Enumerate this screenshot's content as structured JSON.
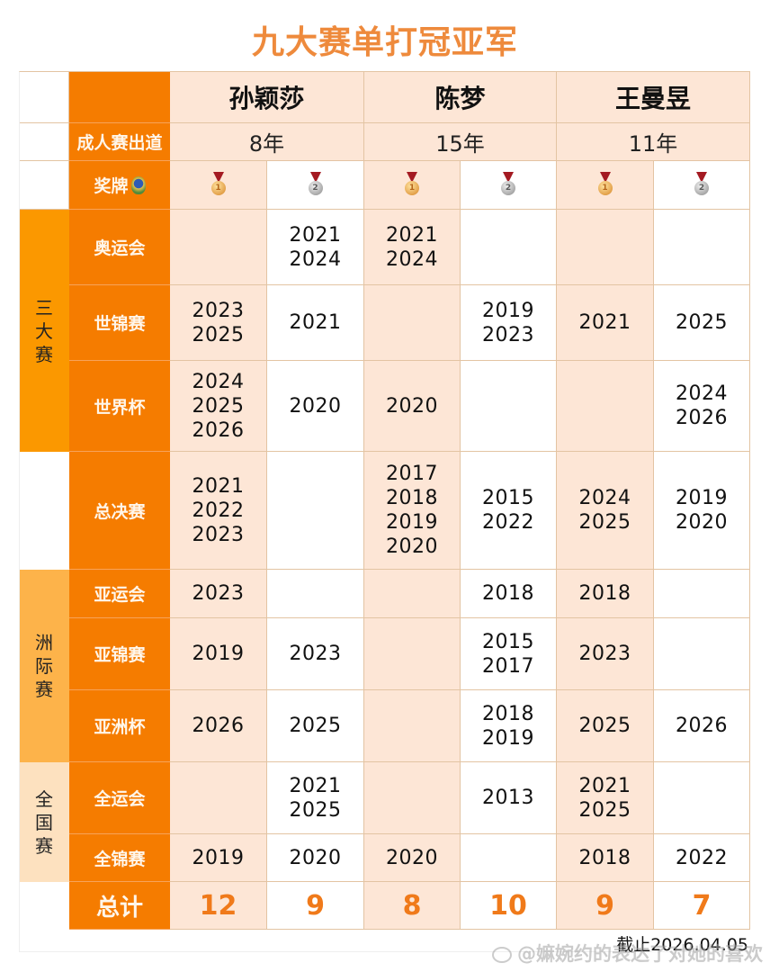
{
  "title": "九大赛单打冠亚军",
  "header": {
    "debut_label": "成人赛出道",
    "medal_label": "奖牌",
    "emblem_icon": "team-emblem-icon",
    "players": [
      {
        "name": "孙颖莎",
        "debut": "8年"
      },
      {
        "name": "陈梦",
        "debut": "15年"
      },
      {
        "name": "王曼昱",
        "debut": "11年"
      }
    ],
    "medals": [
      {
        "type": "gold",
        "number": "1",
        "icon": "gold-medal-icon"
      },
      {
        "type": "silver",
        "number": "2",
        "icon": "silver-medal-icon"
      },
      {
        "type": "gold",
        "number": "1",
        "icon": "gold-medal-icon"
      },
      {
        "type": "silver",
        "number": "2",
        "icon": "silver-medal-icon"
      },
      {
        "type": "gold",
        "number": "1",
        "icon": "gold-medal-icon"
      },
      {
        "type": "silver",
        "number": "2",
        "icon": "silver-medal-icon"
      }
    ]
  },
  "categories": [
    {
      "label": [
        "三",
        "大",
        "赛"
      ],
      "color": "#fb9800"
    },
    {
      "label": [
        "洲",
        "际",
        "赛"
      ],
      "color": "#fdb34a"
    },
    {
      "label": [
        "全",
        "国",
        "赛"
      ],
      "color": "#fde1bf"
    }
  ],
  "rows": [
    {
      "event": "奥运会",
      "cells": [
        [],
        [
          "2021",
          "2024"
        ],
        [
          "2021",
          "2024"
        ],
        [],
        [],
        []
      ]
    },
    {
      "event": "世锦赛",
      "cells": [
        [
          "2023",
          "2025"
        ],
        [
          "2021"
        ],
        [],
        [
          "2019",
          "2023"
        ],
        [
          "2021"
        ],
        [
          "2025"
        ]
      ]
    },
    {
      "event": "世界杯",
      "cells": [
        [
          "2024",
          "2025",
          "2026"
        ],
        [
          "2020"
        ],
        [
          "2020"
        ],
        [],
        [],
        [
          "2024",
          "2026"
        ]
      ]
    },
    {
      "event": "总决赛",
      "cells": [
        [
          "2021",
          "2022",
          "2023"
        ],
        [],
        [
          "2017",
          "2018",
          "2019",
          "2020"
        ],
        [
          "2015",
          "2022"
        ],
        [
          "2024",
          "2025"
        ],
        [
          "2019",
          "2020"
        ]
      ]
    },
    {
      "event": "亚运会",
      "cells": [
        [
          "2023"
        ],
        [],
        [],
        [
          "2018"
        ],
        [
          "2018"
        ],
        []
      ]
    },
    {
      "event": "亚锦赛",
      "cells": [
        [
          "2019"
        ],
        [
          "2023"
        ],
        [],
        [
          "2015",
          "2017"
        ],
        [
          "2023"
        ],
        []
      ]
    },
    {
      "event": "亚洲杯",
      "cells": [
        [
          "2026"
        ],
        [
          "2025"
        ],
        [],
        [
          "2018",
          "2019"
        ],
        [
          "2025"
        ],
        [
          "2026"
        ]
      ]
    },
    {
      "event": "全运会",
      "cells": [
        [],
        [
          "2021",
          "2025"
        ],
        [],
        [
          "2013"
        ],
        [
          "2021",
          "2025"
        ],
        []
      ]
    },
    {
      "event": "全锦赛",
      "cells": [
        [
          "2019"
        ],
        [
          "2020"
        ],
        [
          "2020"
        ],
        [],
        [
          "2018"
        ],
        [
          "2022"
        ]
      ]
    }
  ],
  "totals": {
    "label": "总计",
    "values": [
      "12",
      "9",
      "8",
      "10",
      "9",
      "7"
    ]
  },
  "as_of": "截止2026.04.05",
  "watermark": "@嫲婉约的表达了对她的喜欢",
  "colors": {
    "title": "#ee8a3c",
    "event_label_bg": "#f57c00",
    "gold_column_bg": "#fde6d6",
    "silver_column_bg": "#ffffff",
    "total_text": "#f07a1a"
  }
}
